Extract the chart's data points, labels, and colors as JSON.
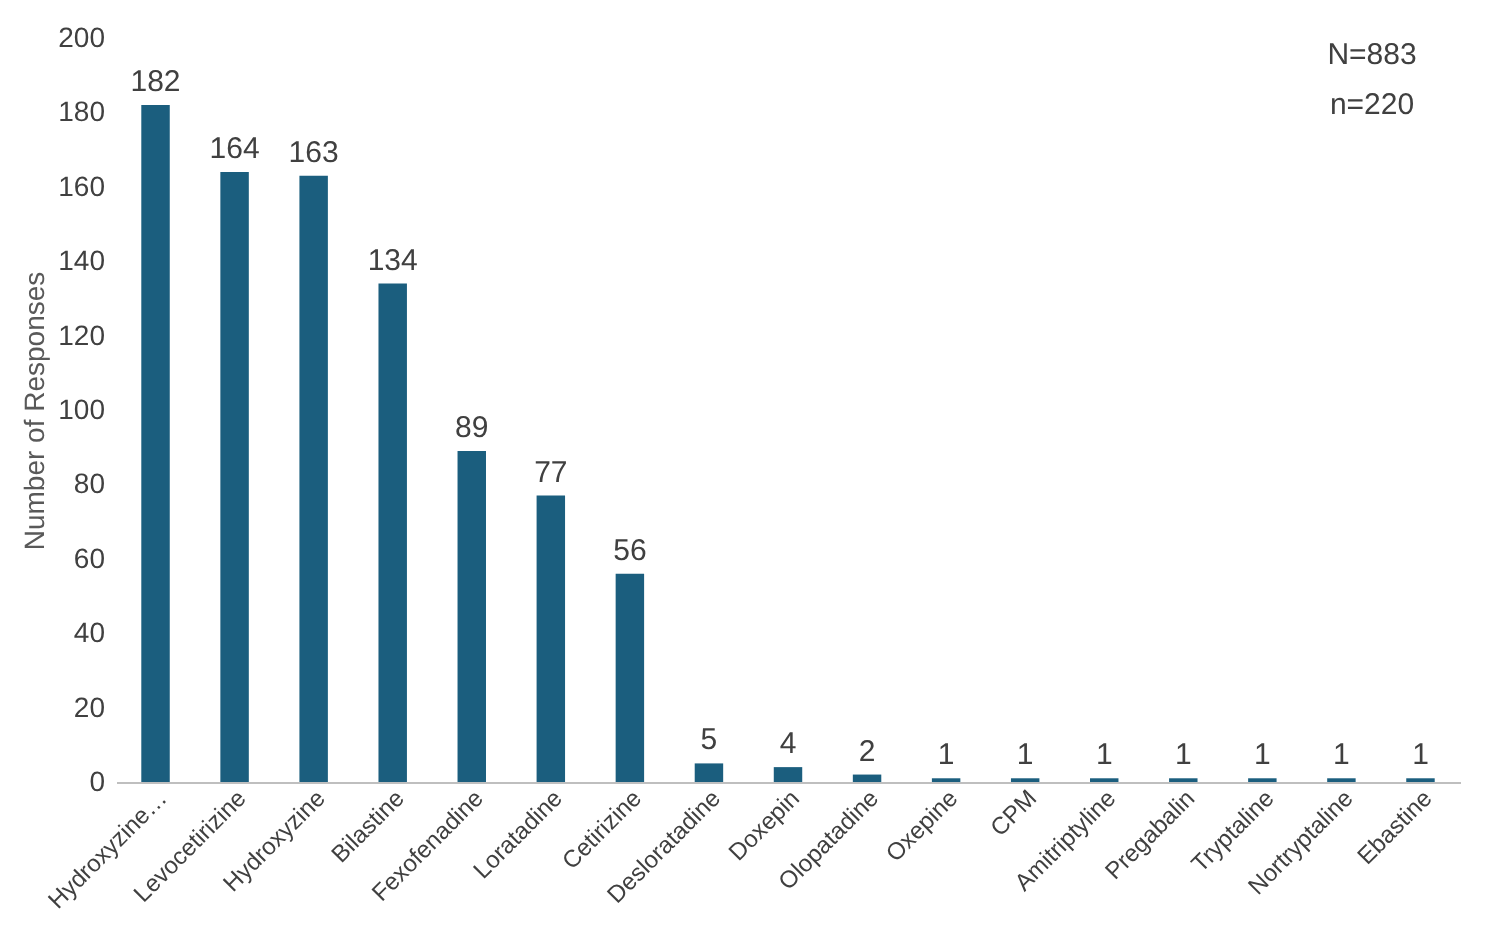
{
  "chart_data": {
    "type": "bar",
    "ylabel": "Number of Responses",
    "categories": [
      "Hydroxyzine…",
      "Levocetirizine",
      "Hydroxyzine",
      "Bilastine",
      "Fexofenadine",
      "Loratadine",
      "Cetirizine",
      "Desloratadine",
      "Doxepin",
      "Olopatadine",
      "Oxepine",
      "CPM",
      "Amitriptyline",
      "Pregabalin",
      "Tryptaline",
      "Nortryptaline",
      "Ebastine"
    ],
    "values": [
      182,
      164,
      163,
      134,
      89,
      77,
      56,
      5,
      4,
      2,
      1,
      1,
      1,
      1,
      1,
      1,
      1
    ],
    "color": "#1b5e7e",
    "ylim": [
      0,
      200
    ],
    "yticks": [
      0,
      20,
      40,
      60,
      80,
      100,
      120,
      140,
      160,
      180,
      200
    ],
    "grid": false,
    "data_labels": true,
    "annotations": [
      "N=883",
      "n=220"
    ]
  }
}
